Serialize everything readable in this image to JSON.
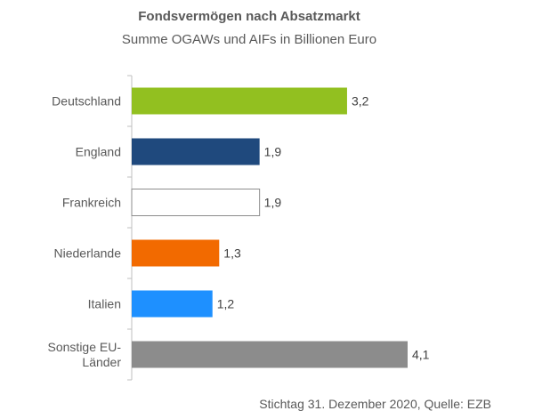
{
  "chart_data": {
    "type": "bar",
    "orientation": "horizontal",
    "title": "Fondsvermögen nach Absatzmarkt",
    "subtitle": "Summe OGAWs und AIFs in Billionen Euro",
    "categories": [
      "Deutschland",
      "England",
      "Frankreich",
      "Niederlande",
      "Italien",
      "Sonstige EU-Länder"
    ],
    "category_lines": [
      [
        "Deutschland"
      ],
      [
        "England"
      ],
      [
        "Frankreich"
      ],
      [
        "Niederlande"
      ],
      [
        "Italien"
      ],
      [
        "Sonstige EU-",
        "Länder"
      ]
    ],
    "values": [
      3.2,
      1.9,
      1.9,
      1.3,
      1.2,
      4.1
    ],
    "value_labels": [
      "3,2",
      "1,9",
      "1,9",
      "1,3",
      "1,2",
      "4,1"
    ],
    "colors": [
      "#92C020",
      "#1F497D",
      "#FFFFFF",
      "#F26A00",
      "#1E90FF",
      "#8C8C8C"
    ],
    "xlim": [
      0,
      4.1
    ],
    "grid": false,
    "footnote": "Stichtag 31. Dezember 2020, Quelle: EZB"
  }
}
